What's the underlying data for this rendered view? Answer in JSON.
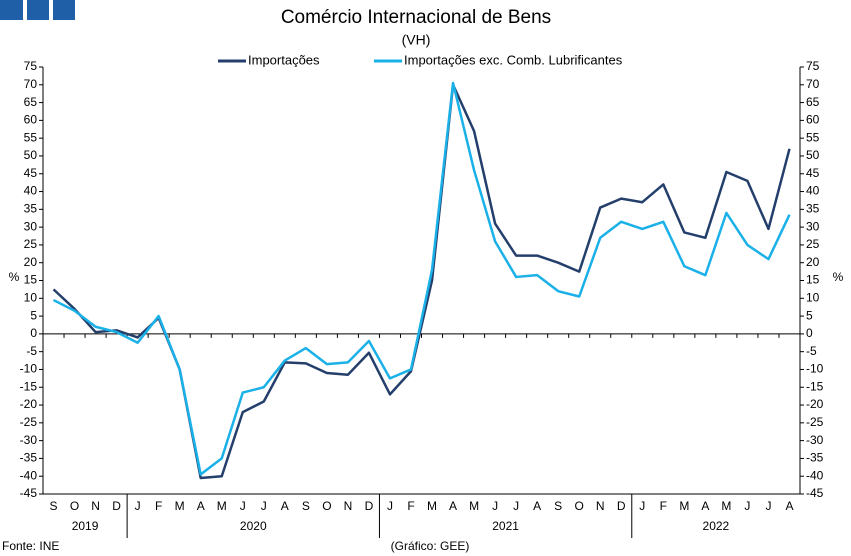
{
  "chart_data": {
    "type": "line",
    "title": "Comércio Internacional de Bens",
    "subtitle": "(VH)",
    "ylabel": "%",
    "y2label": "%",
    "source": "Fonte: INE",
    "credit": "(Gráfico: GEE)",
    "category_groups": [
      {
        "name": "2019",
        "categories": [
          "S",
          "O",
          "N",
          "D"
        ]
      },
      {
        "name": "2020",
        "categories": [
          "J",
          "F",
          "M",
          "A",
          "M",
          "J",
          "J",
          "A",
          "S",
          "O",
          "N",
          "D"
        ]
      },
      {
        "name": "2021",
        "categories": [
          "J",
          "F",
          "M",
          "A",
          "M",
          "J",
          "J",
          "A",
          "S",
          "O",
          "N",
          "D"
        ]
      },
      {
        "name": "2022",
        "categories": [
          "J",
          "F",
          "M",
          "A",
          "M",
          "J",
          "J",
          "A"
        ]
      }
    ],
    "series": [
      {
        "name": "Importações",
        "color": "#243f6b",
        "values": [
          12.5,
          7,
          0.5,
          1,
          -1,
          4.5,
          -10,
          -40.5,
          -40,
          -22,
          -19,
          -8,
          -8.3,
          -11,
          -11.5,
          -5.3,
          -17,
          -10.5,
          15,
          70,
          57,
          31,
          22,
          22,
          20,
          17.5,
          35.5,
          38,
          37,
          42,
          28.5,
          27,
          45.5,
          43,
          29.5,
          52
        ]
      },
      {
        "name": "Importações exc. Comb. Lubrificantes",
        "color": "#1ab0e8",
        "values": [
          9.5,
          6.5,
          2,
          0.5,
          -2.5,
          5,
          -10,
          -39.5,
          -35,
          -16.5,
          -15,
          -7.5,
          -4,
          -8.5,
          -8,
          -2,
          -12.5,
          -10,
          18,
          70.5,
          46,
          26,
          16,
          16.5,
          12,
          10.5,
          27,
          31.5,
          29.5,
          31.5,
          19,
          16.5,
          34,
          25,
          21,
          33.5
        ]
      }
    ],
    "ylim": [
      -45,
      75
    ],
    "yticks": [
      -45,
      -40,
      -35,
      -30,
      -25,
      -20,
      -15,
      -10,
      -5,
      0,
      5,
      10,
      15,
      20,
      25,
      30,
      35,
      40,
      45,
      50,
      55,
      60,
      65,
      70,
      75
    ],
    "y2lim": [
      -45,
      75
    ],
    "y2ticks": [
      -45,
      -40,
      -35,
      -30,
      -25,
      -20,
      -15,
      -10,
      -5,
      0,
      5,
      10,
      15,
      20,
      25,
      30,
      35,
      40,
      45,
      50,
      55,
      60,
      65,
      70,
      75
    ]
  }
}
